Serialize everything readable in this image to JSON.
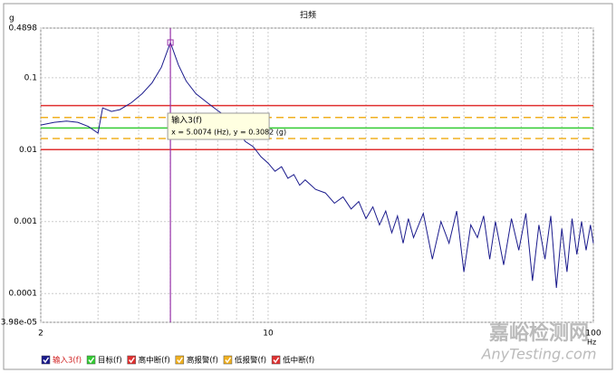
{
  "chart_data": {
    "type": "line",
    "title": "扫频",
    "y_unit": "g",
    "x_unit": "Hz",
    "xscale": "log",
    "yscale": "log",
    "xlim": [
      2,
      100
    ],
    "ylim": [
      3.98e-05,
      0.4898
    ],
    "xticks": [
      2,
      10,
      100
    ],
    "xminor": [
      3,
      4,
      5,
      6,
      7,
      8,
      9,
      20,
      30,
      40,
      50,
      60,
      70,
      80,
      90
    ],
    "yticks": [
      0.4898,
      0.1,
      0.01,
      0.001,
      0.0001,
      {
        "value": 3.98e-05,
        "label": "3.98e-05"
      }
    ],
    "grid": true,
    "x": [
      2,
      2.2,
      2.4,
      2.6,
      2.8,
      3,
      3.1,
      3.3,
      3.5,
      3.8,
      4.1,
      4.4,
      4.7,
      5.0074,
      5.3,
      5.6,
      6,
      6.5,
      7,
      7.5,
      8,
      8.5,
      9,
      9.5,
      10,
      10.5,
      11,
      11.5,
      12,
      12.5,
      13,
      14,
      15,
      16,
      17,
      18,
      19,
      20,
      21,
      22,
      23,
      24,
      25,
      26,
      27,
      28,
      30,
      32,
      34,
      36,
      38,
      40,
      42,
      44,
      46,
      48,
      50,
      53,
      56,
      59,
      62,
      65,
      68,
      71,
      74,
      77,
      80,
      83,
      86,
      89,
      92,
      95,
      98,
      100
    ],
    "series": [
      {
        "name": "输入3(f)",
        "color": "#1a1a8c",
        "values": [
          0.022,
          0.024,
          0.025,
          0.024,
          0.021,
          0.017,
          0.038,
          0.034,
          0.036,
          0.045,
          0.06,
          0.085,
          0.14,
          0.3082,
          0.15,
          0.09,
          0.06,
          0.045,
          0.035,
          0.028,
          0.02,
          0.013,
          0.011,
          0.008,
          0.0065,
          0.005,
          0.0058,
          0.004,
          0.0045,
          0.0032,
          0.0038,
          0.0028,
          0.0025,
          0.0018,
          0.0022,
          0.0015,
          0.0019,
          0.0011,
          0.0016,
          0.0009,
          0.0014,
          0.0007,
          0.0012,
          0.0005,
          0.0011,
          0.0006,
          0.0013,
          0.0003,
          0.001,
          0.0005,
          0.0014,
          0.0002,
          0.0009,
          0.0006,
          0.0012,
          0.0003,
          0.001,
          0.00025,
          0.0011,
          0.0004,
          0.0013,
          0.00015,
          0.0009,
          0.0003,
          0.0012,
          0.00012,
          0.0008,
          0.0002,
          0.0011,
          0.00035,
          0.001,
          0.0004,
          0.0009,
          0.0005
        ]
      }
    ],
    "levels": [
      {
        "name": "目标(f)",
        "color": "#33cc33",
        "value": 0.02,
        "dashed": false
      },
      {
        "name": "高中断(f)",
        "color": "#e03030",
        "value": 0.041,
        "dashed": false
      },
      {
        "name": "高报警(f)",
        "color": "#f0b020",
        "value": 0.028,
        "dashed": true
      },
      {
        "name": "低报警(f)",
        "color": "#f0b020",
        "value": 0.0143,
        "dashed": true
      },
      {
        "name": "低中断(f)",
        "color": "#e03030",
        "value": 0.01,
        "dashed": false
      }
    ],
    "cursor": {
      "x": 5.0074,
      "y": 0.3082,
      "color": "#9933aa"
    },
    "tooltip": {
      "title": "输入3(f)",
      "text": "x = 5.0074 (Hz), y = 0.3082 (g)"
    },
    "watermark": [
      "嘉峪检测网",
      "AnyTesting.com"
    ]
  }
}
